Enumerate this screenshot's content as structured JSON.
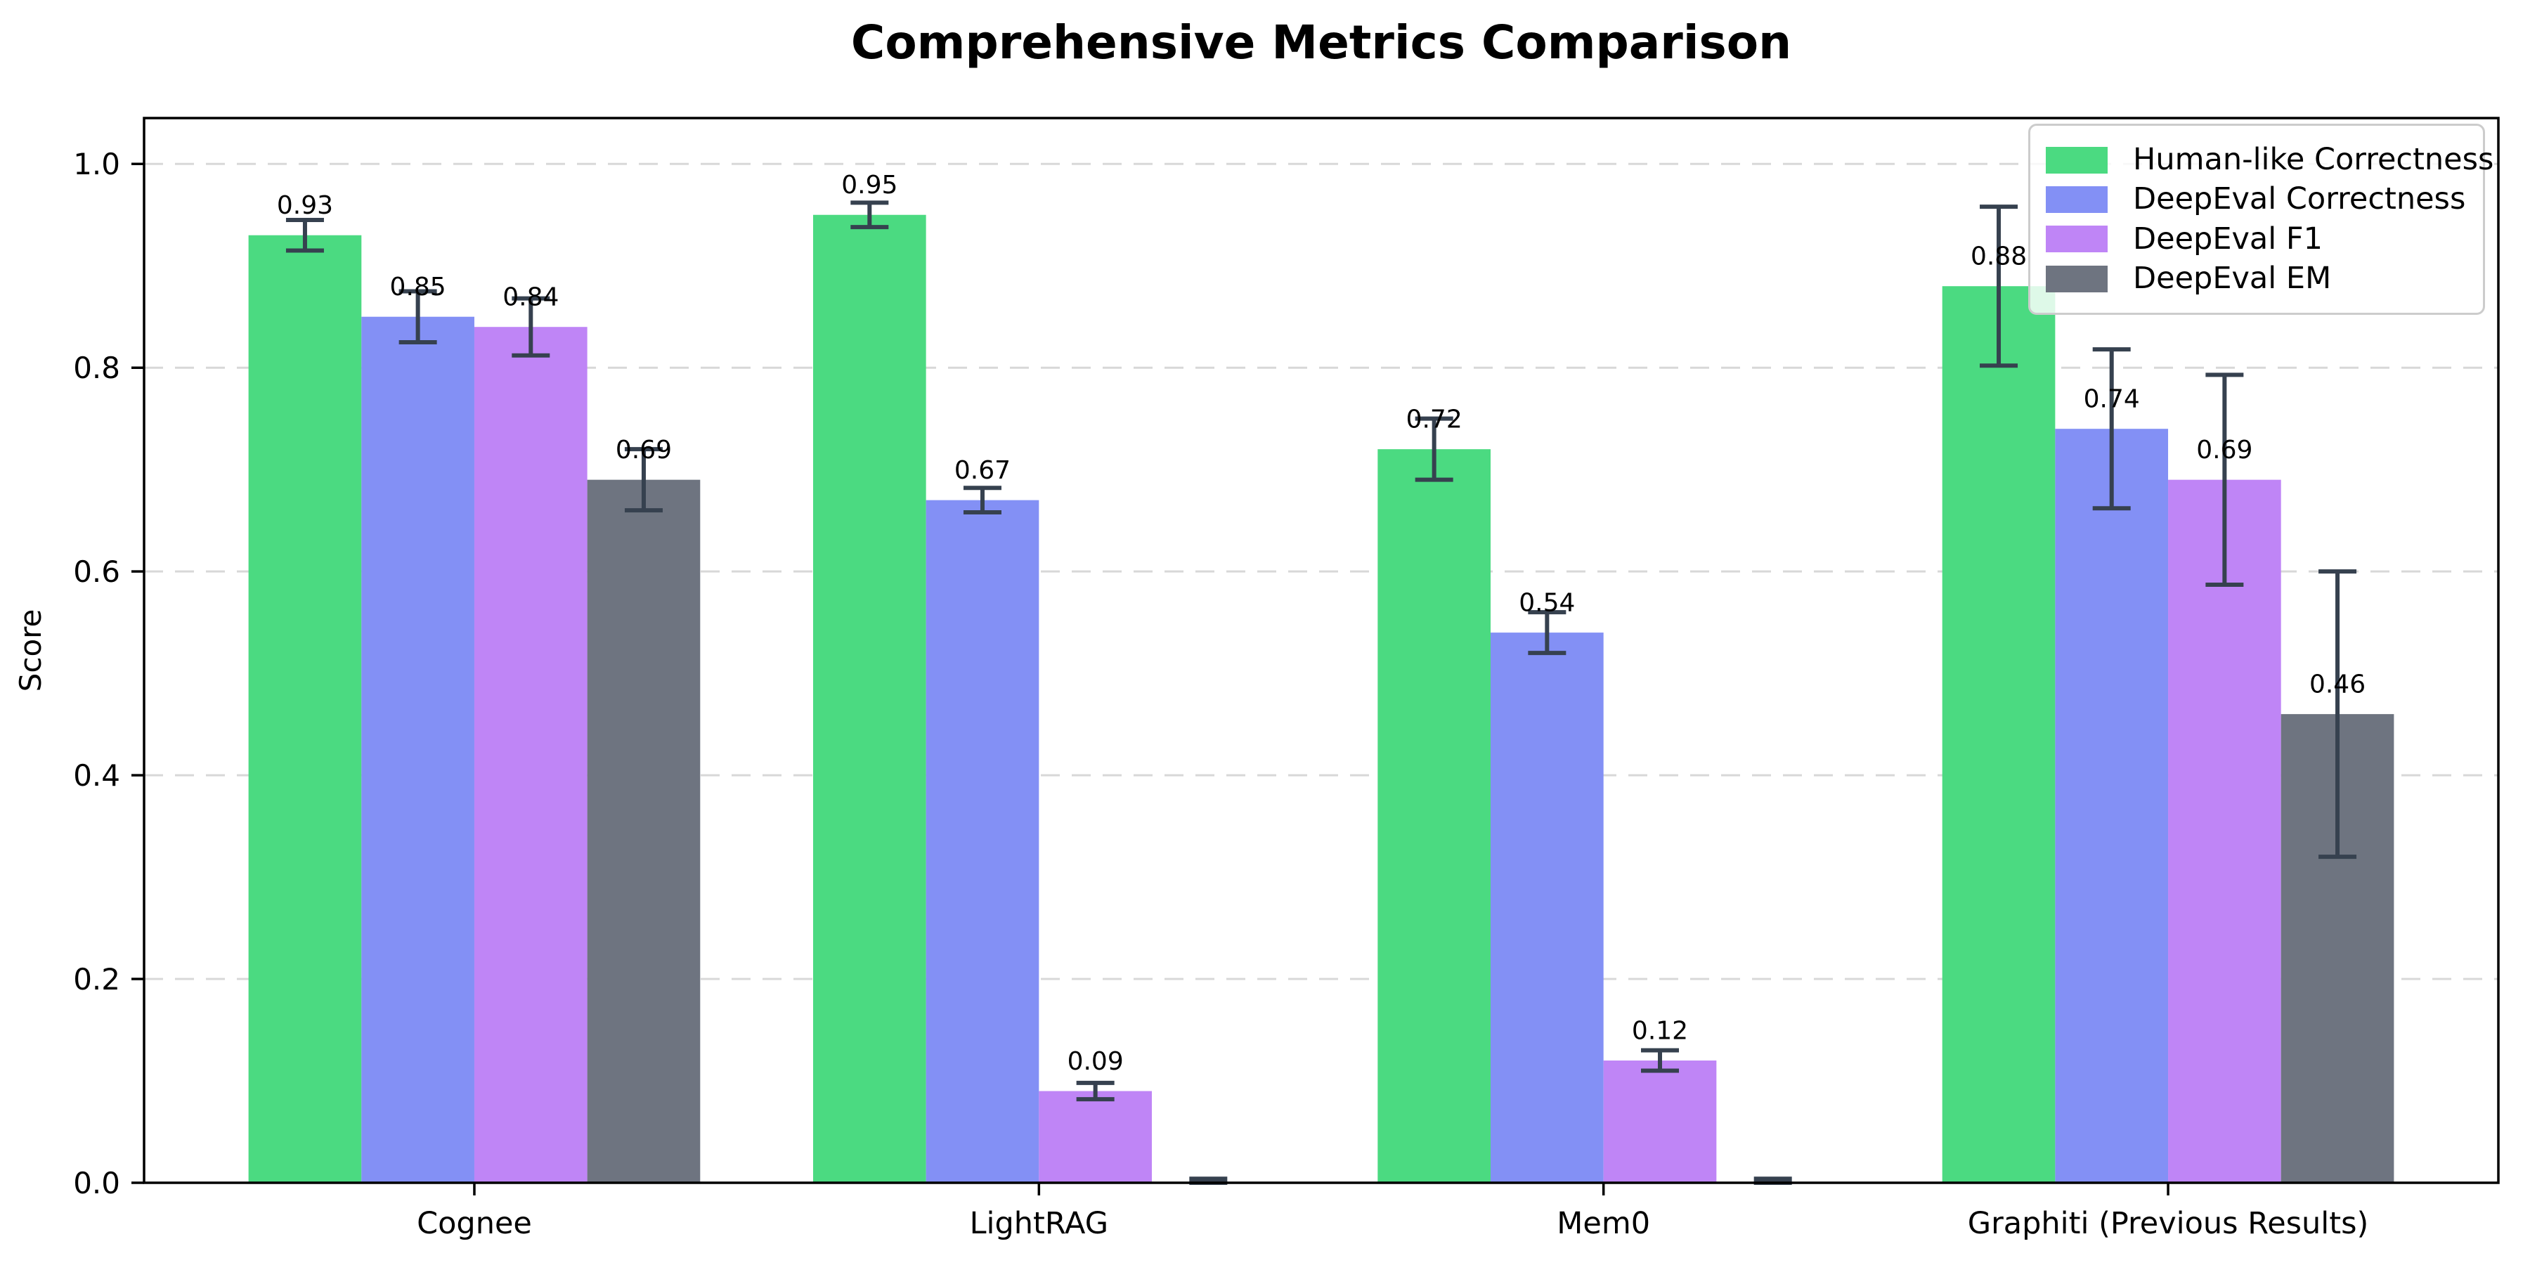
{
  "title": "Comprehensive Metrics Comparison",
  "chart_data": {
    "type": "bar",
    "title": "Comprehensive Metrics Comparison",
    "xlabel": "",
    "ylabel": "Score",
    "categories": [
      "Cognee",
      "LightRAG",
      "Mem0",
      "Graphiti (Previous Results)"
    ],
    "series": [
      {
        "name": "Human-like Correctness",
        "color": "#4bda81",
        "values": [
          0.93,
          0.95,
          0.72,
          0.88
        ],
        "errors": [
          0.015,
          0.012,
          0.03,
          0.078
        ],
        "value_labels": [
          "0.93",
          "0.95",
          "0.72",
          "0.88"
        ]
      },
      {
        "name": "DeepEval Correctness",
        "color": "#8390f5",
        "values": [
          0.85,
          0.67,
          0.54,
          0.74
        ],
        "errors": [
          0.025,
          0.012,
          0.02,
          0.078
        ],
        "value_labels": [
          "0.85",
          "0.67",
          "0.54",
          "0.74"
        ]
      },
      {
        "name": "DeepEval F1",
        "color": "#bf85f6",
        "values": [
          0.84,
          0.09,
          0.12,
          0.69
        ],
        "errors": [
          0.028,
          0.008,
          0.01,
          0.103
        ],
        "value_labels": [
          "0.84",
          "0.09",
          "0.12",
          "0.69"
        ]
      },
      {
        "name": "DeepEval EM",
        "color": "#6e7480",
        "values": [
          0.69,
          0.0,
          0.0,
          0.46
        ],
        "errors": [
          0.03,
          0.004,
          0.004,
          0.14
        ],
        "value_labels": [
          "0.69",
          "",
          "",
          "0.46"
        ]
      }
    ],
    "ylim": [
      0.0,
      1.045
    ],
    "yticks": [
      0.0,
      0.2,
      0.4,
      0.6,
      0.8,
      1.0
    ],
    "ytick_labels": [
      "0.0",
      "0.2",
      "0.4",
      "0.6",
      "0.8",
      "1.0"
    ],
    "grid": "horizontal-dashed",
    "grid_color": "#d8d8d8",
    "error_bar_color": "#36414f",
    "legend_position": "upper-right"
  }
}
